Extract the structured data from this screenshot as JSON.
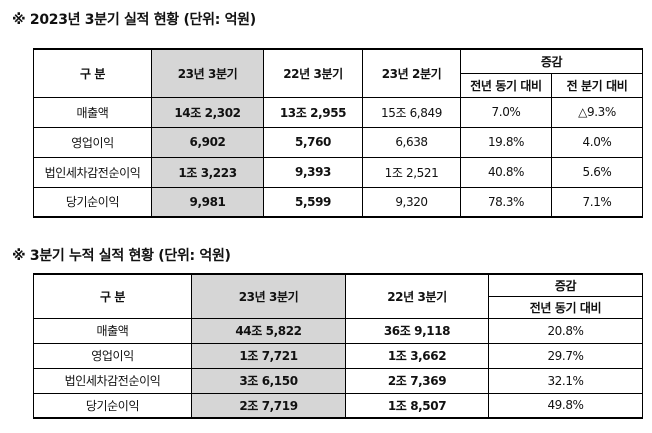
{
  "table1": {
    "title": "※ 2023년 3분기 실적 현황 (단위: 억원)",
    "headers": {
      "category": "구 분",
      "q3_23": "23년  3분기",
      "q3_22": "22년 3분기",
      "q2_23": "23년 2분기",
      "change": "증감",
      "yoy": "전년 동기 대비",
      "qoq": "전 분기 대비"
    },
    "rows": [
      {
        "label": "매출액",
        "q3_23": "14조 2,302",
        "q3_22": "13조 2,955",
        "q2_23": "15조 6,849",
        "yoy": "7.0%",
        "qoq": "△9.3%"
      },
      {
        "label": "영업이익",
        "q3_23": "6,902",
        "q3_22": "5,760",
        "q2_23": "6,638",
        "yoy": "19.8%",
        "qoq": "4.0%"
      },
      {
        "label": "법인세차감전순이익",
        "q3_23": "1조 3,223",
        "q3_22": "9,393",
        "q2_23": "1조 2,521",
        "yoy": "40.8%",
        "qoq": "5.6%"
      },
      {
        "label": "당기순이익",
        "q3_23": "9,981",
        "q3_22": "5,599",
        "q2_23": "9,320",
        "yoy": "78.3%",
        "qoq": "7.1%"
      }
    ]
  },
  "table2": {
    "title": "※ 3분기 누적 실적 현황 (단위: 억원)",
    "headers": {
      "category": "구 분",
      "q3_23": "23년 3분기",
      "q3_22": "22년 3분기",
      "change": "증감",
      "yoy": "전년 동기 대비"
    },
    "rows": [
      {
        "label": "매출액",
        "q3_23": "44조 5,822",
        "q3_22": "36조 9,118",
        "yoy": "20.8%"
      },
      {
        "label": "영업이익",
        "q3_23": "1조 7,721",
        "q3_22": "1조 3,662",
        "yoy": "29.7%"
      },
      {
        "label": "법인세차감전순이익",
        "q3_23": "3조 6,150",
        "q3_22": "2조 7,369",
        "yoy": "32.1%"
      },
      {
        "label": "당기순이익",
        "q3_23": "2조 7,719",
        "q3_22": "1조 8,507",
        "yoy": "49.8%"
      }
    ]
  }
}
